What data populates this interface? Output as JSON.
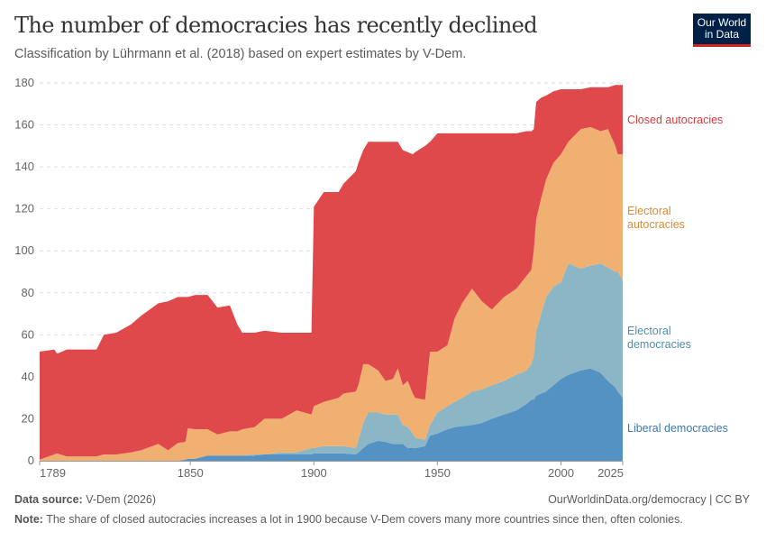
{
  "header": {
    "title": "The number of democracies has recently declined",
    "subtitle": "Classification by Lührmann et al. (2018) based on expert estimates by V-Dem.",
    "logo_text": "Our World in Data"
  },
  "footer": {
    "source_label": "Data source:",
    "source_value": "V-Dem (2026)",
    "url": "OurWorldinData.org/democracy | CC BY",
    "note_label": "Note:",
    "note_value": "The share of closed autocracies increases a lot in 1900 because V-Dem covers many more countries since then, often colonies."
  },
  "chart_data": {
    "type": "area",
    "stacked": true,
    "title": "The number of democracies has recently declined",
    "subtitle": "Classification by Lührmann et al. (2018) based on expert estimates by V-Dem.",
    "xlim": [
      1789,
      2025
    ],
    "ylim": [
      0,
      180
    ],
    "x_ticks": [
      "1789",
      "1850",
      "1900",
      "1950",
      "2000",
      "2025"
    ],
    "y_ticks": [
      "0",
      "20",
      "40",
      "60",
      "80",
      "100",
      "120",
      "140",
      "160",
      "180"
    ],
    "grid": "horizontal dashed",
    "legend": "right (inline labels)",
    "x": [
      1789,
      1795,
      1796,
      1800,
      1812,
      1815,
      1820,
      1826,
      1830,
      1837,
      1841,
      1845,
      1848,
      1849,
      1852,
      1857,
      1861,
      1866,
      1869,
      1871,
      1876,
      1880,
      1887,
      1893,
      1899,
      1900,
      1904,
      1910,
      1912,
      1917,
      1918,
      1920,
      1922,
      1926,
      1929,
      1932,
      1934,
      1936,
      1938,
      1940,
      1941,
      1945,
      1947,
      1950,
      1954,
      1957,
      1960,
      1964,
      1968,
      1972,
      1977,
      1982,
      1986,
      1988,
      1989,
      1990,
      1992,
      1994,
      1997,
      2000,
      2003,
      2008,
      2012,
      2016,
      2019,
      2022,
      2023,
      2025
    ],
    "series": [
      {
        "name": "Liberal democracies",
        "label": "Liberal democracies",
        "color": "#5592c4",
        "label_color": "#3a78b4",
        "values": [
          0,
          0,
          0,
          0,
          0,
          0,
          0,
          0,
          0,
          0,
          0,
          0,
          0.5,
          1,
          1,
          2.5,
          2.5,
          2.5,
          2.5,
          2.5,
          2.5,
          3,
          3,
          3,
          3,
          3.5,
          3.5,
          3.5,
          3.5,
          3,
          4,
          6,
          8,
          9.5,
          9,
          8,
          8,
          8,
          6,
          6,
          6,
          7,
          12,
          13,
          15,
          16,
          16.5,
          17,
          18,
          20,
          22,
          24,
          27,
          29,
          29,
          31,
          32,
          33,
          36,
          39,
          41,
          43,
          44,
          42,
          38,
          35,
          33,
          30
        ]
      },
      {
        "name": "Electoral democracies",
        "label": "Electoral\ndemocracies",
        "color": "#8bb6c6",
        "label_color": "#4f8fab",
        "values": [
          0,
          0,
          0,
          0,
          0,
          0,
          0,
          0,
          0,
          0,
          0,
          0,
          0,
          0,
          0,
          0,
          0,
          0,
          0,
          0,
          0.5,
          0,
          1,
          1,
          3,
          2.5,
          3.5,
          3.5,
          3.5,
          3,
          6,
          12,
          15,
          13.5,
          13,
          14,
          14,
          9,
          10,
          7,
          5,
          3,
          5,
          10,
          11,
          12,
          13.5,
          16,
          16,
          16,
          16,
          17,
          16,
          17,
          21,
          31,
          38,
          45,
          47,
          46,
          53,
          48.5,
          49,
          52,
          54,
          55,
          57,
          56
        ]
      },
      {
        "name": "Electoral autocracies",
        "label": "Electoral\nautocracies",
        "color": "#f0b072",
        "label_color": "#d98a3a",
        "values": [
          0.5,
          3,
          3.5,
          2,
          2,
          3,
          3,
          4,
          5,
          8,
          5,
          8.5,
          8.5,
          14.5,
          14,
          12.5,
          10,
          11.5,
          11.5,
          12.5,
          13,
          17,
          16,
          20,
          16,
          20,
          21,
          23,
          25,
          27,
          26,
          28,
          23,
          20,
          16,
          17,
          22,
          19,
          22,
          19,
          19,
          19,
          35,
          29,
          29,
          40,
          45,
          49,
          42,
          36,
          40,
          41,
          45,
          45,
          50,
          53,
          55,
          56,
          59,
          61,
          58,
          66.5,
          66,
          63,
          66,
          60,
          56,
          60
        ]
      },
      {
        "name": "Closed autocracies",
        "label": "Closed autocracies",
        "color": "#e0494b",
        "label_color": "#d43a3d",
        "values": [
          51.5,
          50,
          47.5,
          51,
          51,
          57,
          58,
          61,
          64,
          67,
          71,
          69.5,
          69,
          62.5,
          64,
          64,
          60.5,
          60,
          51,
          46,
          45,
          42,
          41,
          37,
          39,
          95,
          100,
          98,
          100,
          105,
          106,
          102,
          106,
          109,
          114,
          113,
          108,
          112,
          109,
          114,
          117,
          121,
          100,
          104,
          101,
          88,
          81,
          74,
          80,
          84,
          78,
          74,
          69,
          66,
          58,
          56,
          48,
          40,
          34,
          31,
          25,
          19,
          19,
          21,
          20,
          29,
          33,
          33
        ]
      }
    ]
  }
}
